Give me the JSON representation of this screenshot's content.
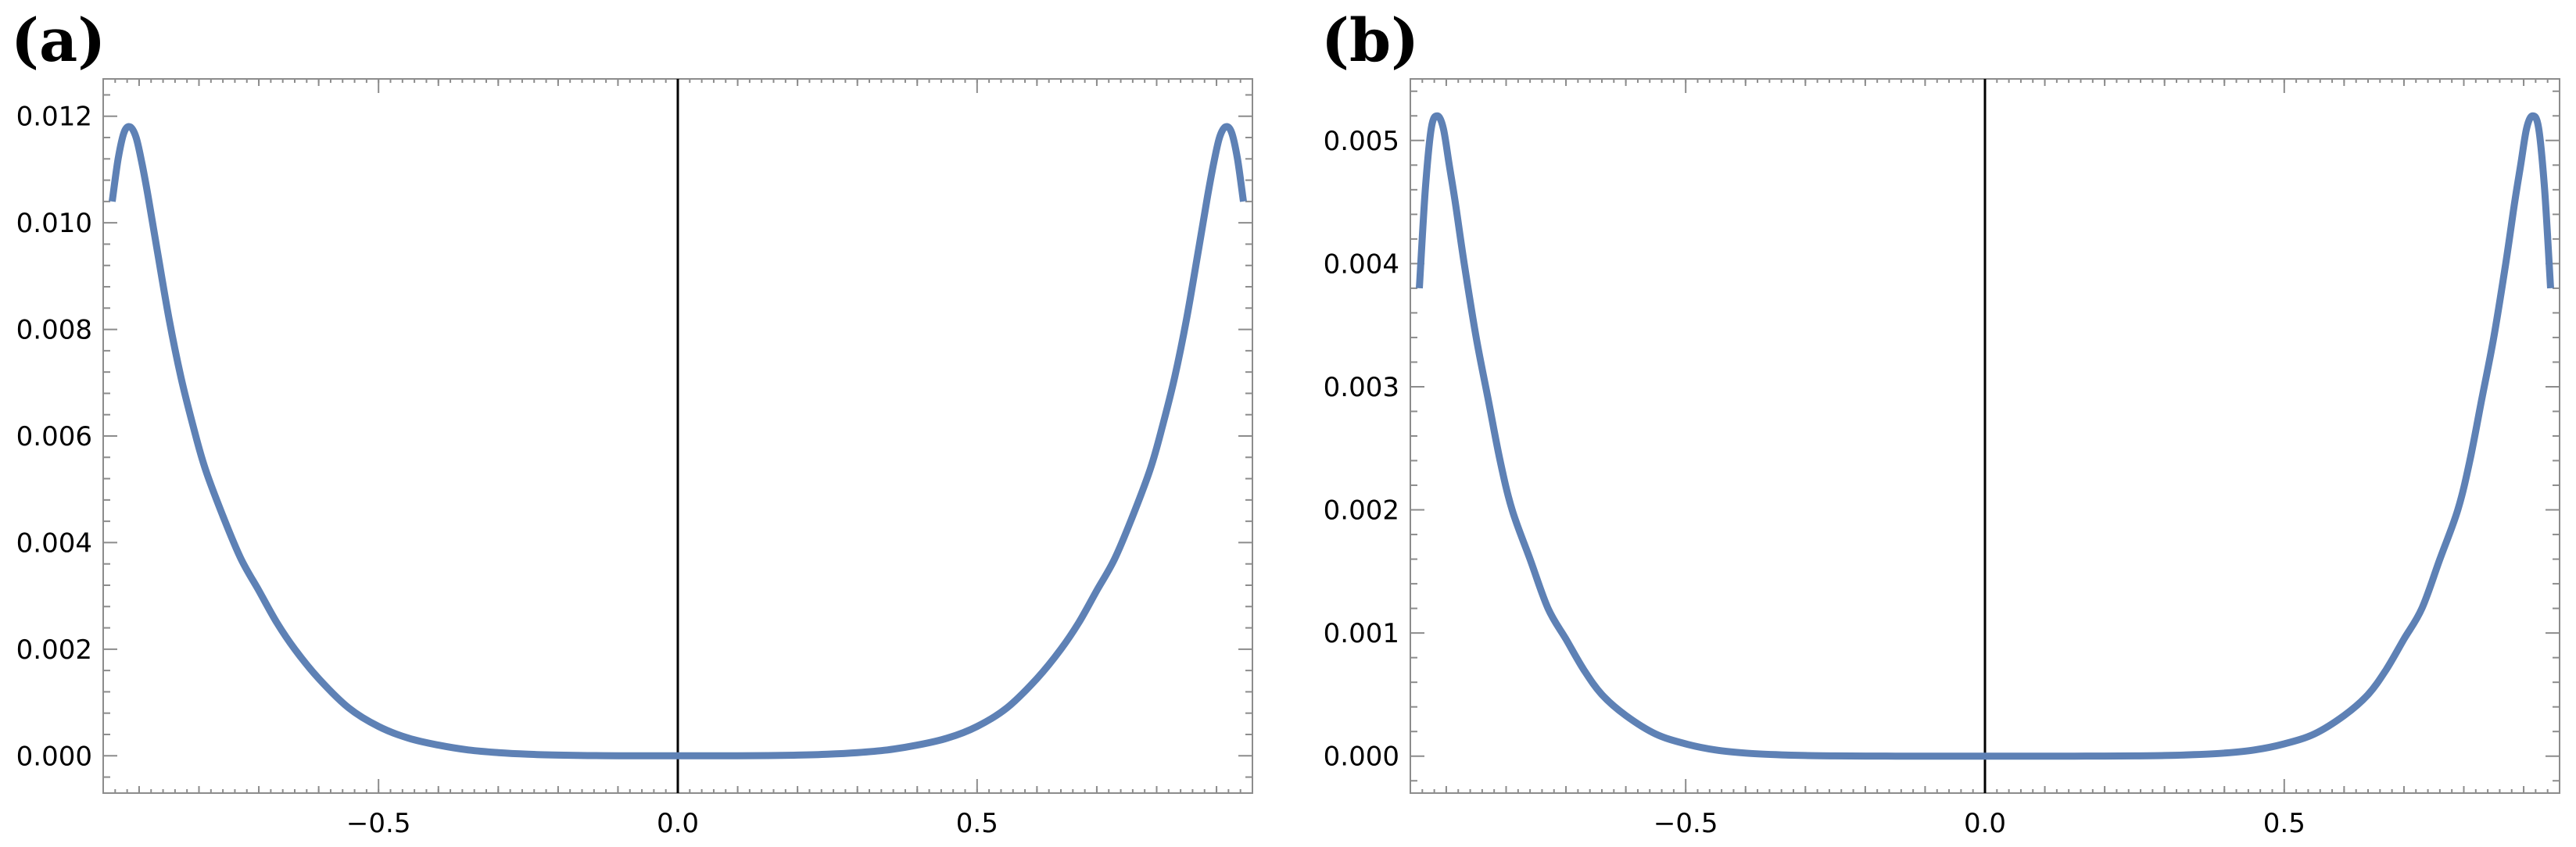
{
  "colors": {
    "series": "#5e81b5",
    "frame": "#8c8c8c",
    "zero_line": "#000000"
  },
  "chart_data": [
    {
      "type": "line",
      "panel_label": "(a)",
      "xlim": [
        -0.96,
        0.96
      ],
      "ylim": [
        -0.0007,
        0.0127
      ],
      "x_ticks": [
        -0.5,
        0.0,
        0.5
      ],
      "x_tick_labels": [
        "−0.5",
        "0.0",
        "0.5"
      ],
      "y_ticks": [
        0.0,
        0.002,
        0.004,
        0.006,
        0.008,
        0.01,
        0.012
      ],
      "y_tick_labels": [
        "0.000",
        "0.002",
        "0.004",
        "0.006",
        "0.008",
        "0.010",
        "0.012"
      ],
      "grid": false,
      "series": [
        {
          "x": [
            -0.945,
            -0.935,
            -0.925,
            -0.915,
            -0.905,
            -0.895,
            -0.885,
            -0.87,
            -0.85,
            -0.83,
            -0.81,
            -0.79,
            -0.76,
            -0.73,
            -0.7,
            -0.67,
            -0.64,
            -0.6,
            -0.55,
            -0.5,
            -0.45,
            -0.4,
            -0.35,
            -0.3,
            -0.25,
            -0.2,
            -0.15,
            -0.1,
            -0.05,
            0.0,
            0.05,
            0.1,
            0.15,
            0.2,
            0.25,
            0.3,
            0.35,
            0.4,
            0.45,
            0.5,
            0.55,
            0.6,
            0.64,
            0.67,
            0.7,
            0.73,
            0.76,
            0.79,
            0.81,
            0.83,
            0.85,
            0.87,
            0.885,
            0.895,
            0.905,
            0.915,
            0.925,
            0.935,
            0.945
          ],
          "y": [
            0.0104,
            0.0112,
            0.0117,
            0.0118,
            0.0116,
            0.0111,
            0.0105,
            0.0095,
            0.0082,
            0.0071,
            0.0062,
            0.0054,
            0.0045,
            0.0037,
            0.0031,
            0.0025,
            0.002,
            0.00145,
            0.0009,
            0.00055,
            0.00033,
            0.0002,
            0.00011,
            6e-05,
            3e-05,
            1.2e-05,
            4e-06,
            1e-06,
            0.0,
            0.0,
            0.0,
            1e-06,
            4e-06,
            1.2e-05,
            3e-05,
            6e-05,
            0.00011,
            0.0002,
            0.00033,
            0.00055,
            0.0009,
            0.00145,
            0.002,
            0.0025,
            0.0031,
            0.0037,
            0.0045,
            0.0054,
            0.0062,
            0.0071,
            0.0082,
            0.0095,
            0.0105,
            0.0111,
            0.0116,
            0.0118,
            0.0117,
            0.0112,
            0.0104
          ]
        }
      ]
    },
    {
      "type": "line",
      "panel_label": "(b)",
      "xlim": [
        -0.96,
        0.96
      ],
      "ylim": [
        -0.0003,
        0.0055
      ],
      "x_ticks": [
        -0.5,
        0.0,
        0.5
      ],
      "x_tick_labels": [
        "−0.5",
        "0.0",
        "0.5"
      ],
      "y_ticks": [
        0.0,
        0.001,
        0.002,
        0.003,
        0.004,
        0.005
      ],
      "y_tick_labels": [
        "0.000",
        "0.001",
        "0.002",
        "0.003",
        "0.004",
        "0.005"
      ],
      "grid": false,
      "series": [
        {
          "x": [
            -0.945,
            -0.935,
            -0.925,
            -0.915,
            -0.905,
            -0.895,
            -0.885,
            -0.87,
            -0.85,
            -0.83,
            -0.81,
            -0.79,
            -0.76,
            -0.73,
            -0.7,
            -0.67,
            -0.64,
            -0.6,
            -0.55,
            -0.5,
            -0.45,
            -0.4,
            -0.35,
            -0.3,
            -0.25,
            -0.2,
            -0.15,
            -0.1,
            -0.05,
            0.0,
            0.05,
            0.1,
            0.15,
            0.2,
            0.25,
            0.3,
            0.35,
            0.4,
            0.45,
            0.5,
            0.55,
            0.6,
            0.64,
            0.67,
            0.7,
            0.73,
            0.76,
            0.79,
            0.81,
            0.83,
            0.85,
            0.87,
            0.885,
            0.895,
            0.905,
            0.915,
            0.925,
            0.935,
            0.945
          ],
          "y": [
            0.0038,
            0.0046,
            0.0051,
            0.0052,
            0.0051,
            0.0048,
            0.0045,
            0.004,
            0.0034,
            0.0029,
            0.0024,
            0.002,
            0.0016,
            0.0012,
            0.00095,
            0.0007,
            0.0005,
            0.00033,
            0.00018,
            0.0001,
            5e-05,
            2.5e-05,
            1.2e-05,
            5e-06,
            2e-06,
            5e-07,
            0.0,
            0.0,
            0.0,
            0.0,
            0.0,
            0.0,
            0.0,
            5e-07,
            2e-06,
            5e-06,
            1.2e-05,
            2.5e-05,
            5e-05,
            0.0001,
            0.00018,
            0.00033,
            0.0005,
            0.0007,
            0.00095,
            0.0012,
            0.0016,
            0.002,
            0.0024,
            0.0029,
            0.0034,
            0.004,
            0.0045,
            0.0048,
            0.0051,
            0.0052,
            0.0051,
            0.0046,
            0.0038
          ]
        }
      ]
    }
  ]
}
